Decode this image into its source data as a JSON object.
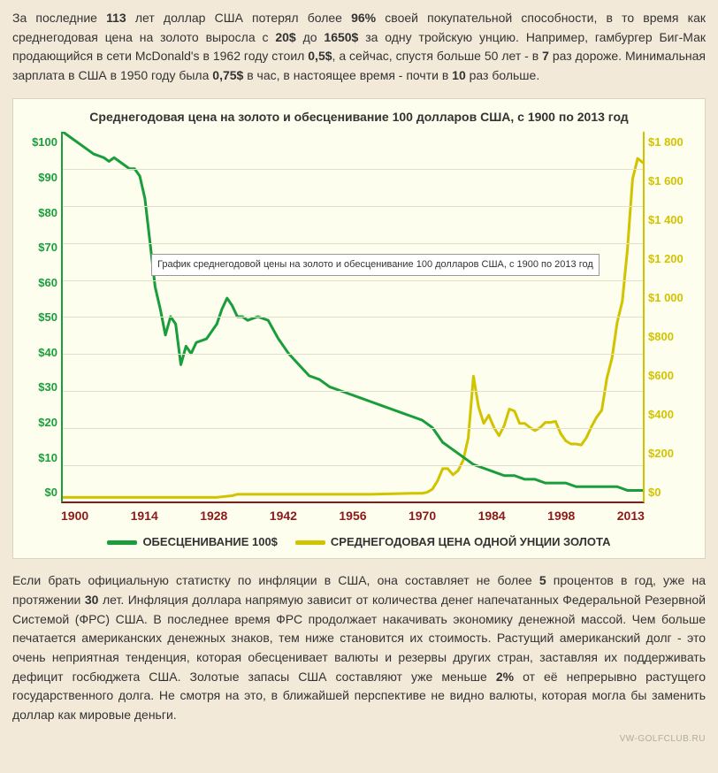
{
  "text": {
    "para1_parts": [
      "За последние ",
      "113",
      " лет доллар США потерял более ",
      "96%",
      " своей покупательной способности, в то время как среднегодовая цена на золото выросла с ",
      "20$",
      " до ",
      "1650$",
      " за одну тройскую унцию. Например, гамбургер Биг-Мак продающийся в сети McDonald's в 1962 году стоил ",
      "0,5$",
      ", а сейчас, спустя больше 50 лет - в ",
      "7",
      " раз дороже. Минимальная зарплата в США в 1950 году была ",
      "0,75$",
      " в час, в настоящее время - почти в ",
      "10",
      " раз больше."
    ],
    "para1_bold_idx": [
      1,
      3,
      5,
      7,
      9,
      11,
      13,
      15
    ],
    "para2_parts": [
      "Если брать официальную статистку по инфляции в США, она составляет не более ",
      "5",
      " процентов в год, уже на протяжении ",
      "30",
      " лет. Инфляция доллара напрямую зависит от количества денег напечатанных Федеральной Резервной Системой (ФРС) США. В последнее время ФРС продолжает накачивать экономику денежной массой. Чем больше печатается американских денежных знаков, тем ниже становится их стоимость. Растущий американский долг - это очень неприятная тенденция, которая обесценивает валюты и резервы других стран, заставляя их поддерживать дефицит госбюджета США. Золотые запасы США составляют уже меньше ",
      "2%",
      " от её непрерывно растущего государственного долга. Не смотря на это, в ближайшей перспективе не видно валюты, которая могла бы заменить доллар как мировые деньги."
    ],
    "para2_bold_idx": [
      1,
      3,
      5
    ]
  },
  "chart": {
    "title": "Среднегодовая цена на золото и обесценивание 100 долларов США, с 1900 по 2013 год",
    "tooltip": "График среднегодовой цены на золото и обесценивание 100 долларов США, с 1900 по 2013 год",
    "background_color": "#fdfeee",
    "grid_color": "#e2e0cd",
    "left_axis": {
      "color": "#1a9d3c",
      "min": 0,
      "max": 100,
      "ticks": [
        "$100",
        "$90",
        "$80",
        "$70",
        "$60",
        "$50",
        "$40",
        "$30",
        "$20",
        "$10",
        "$0"
      ]
    },
    "right_axis": {
      "color": "#d2c300",
      "min": 0,
      "max": 1800,
      "ticks": [
        "$1 800",
        "$1 600",
        "$1 400",
        "$1 200",
        "$1 000",
        "$800",
        "$600",
        "$400",
        "$200",
        "$0"
      ]
    },
    "x_axis": {
      "color": "#8b1a1a",
      "min": 1900,
      "max": 2013,
      "ticks": [
        "1900",
        "1914",
        "1928",
        "1942",
        "1956",
        "1970",
        "1984",
        "1998",
        "2013"
      ]
    },
    "series_dollar": {
      "label": "ОБЕСЦЕНИВАНИЕ 100$",
      "color": "#1a9d3c",
      "line_width": 3,
      "points": [
        [
          1900,
          100
        ],
        [
          1902,
          98
        ],
        [
          1904,
          96
        ],
        [
          1906,
          94
        ],
        [
          1908,
          93
        ],
        [
          1909,
          92
        ],
        [
          1910,
          93
        ],
        [
          1912,
          91
        ],
        [
          1913,
          90
        ],
        [
          1914,
          90
        ],
        [
          1915,
          88
        ],
        [
          1916,
          82
        ],
        [
          1917,
          70
        ],
        [
          1918,
          58
        ],
        [
          1919,
          52
        ],
        [
          1920,
          45
        ],
        [
          1921,
          50
        ],
        [
          1922,
          48
        ],
        [
          1923,
          37
        ],
        [
          1924,
          42
        ],
        [
          1925,
          40
        ],
        [
          1926,
          43
        ],
        [
          1928,
          44
        ],
        [
          1930,
          48
        ],
        [
          1931,
          52
        ],
        [
          1932,
          55
        ],
        [
          1933,
          53
        ],
        [
          1934,
          50
        ],
        [
          1935,
          50
        ],
        [
          1936,
          49
        ],
        [
          1938,
          50
        ],
        [
          1940,
          49
        ],
        [
          1942,
          44
        ],
        [
          1944,
          40
        ],
        [
          1946,
          37
        ],
        [
          1948,
          34
        ],
        [
          1950,
          33
        ],
        [
          1952,
          31
        ],
        [
          1954,
          30
        ],
        [
          1956,
          29
        ],
        [
          1958,
          28
        ],
        [
          1960,
          27
        ],
        [
          1962,
          26
        ],
        [
          1964,
          25
        ],
        [
          1966,
          24
        ],
        [
          1968,
          23
        ],
        [
          1970,
          22
        ],
        [
          1972,
          20
        ],
        [
          1974,
          16
        ],
        [
          1976,
          14
        ],
        [
          1978,
          12
        ],
        [
          1980,
          10
        ],
        [
          1982,
          9
        ],
        [
          1984,
          8
        ],
        [
          1986,
          7
        ],
        [
          1988,
          7
        ],
        [
          1990,
          6
        ],
        [
          1992,
          6
        ],
        [
          1994,
          5
        ],
        [
          1996,
          5
        ],
        [
          1998,
          5
        ],
        [
          2000,
          4
        ],
        [
          2002,
          4
        ],
        [
          2004,
          4
        ],
        [
          2006,
          4
        ],
        [
          2008,
          4
        ],
        [
          2010,
          3
        ],
        [
          2012,
          3
        ],
        [
          2013,
          3
        ]
      ]
    },
    "series_gold": {
      "label": "СРЕДНЕГОДОВАЯ ЦЕНА ОДНОЙ УНЦИИ ЗОЛОТА",
      "color": "#d2c300",
      "line_width": 3,
      "points": [
        [
          1900,
          20
        ],
        [
          1910,
          20
        ],
        [
          1920,
          20
        ],
        [
          1930,
          20
        ],
        [
          1933,
          28
        ],
        [
          1934,
          35
        ],
        [
          1940,
          35
        ],
        [
          1950,
          35
        ],
        [
          1960,
          35
        ],
        [
          1968,
          40
        ],
        [
          1970,
          40
        ],
        [
          1971,
          45
        ],
        [
          1972,
          60
        ],
        [
          1973,
          100
        ],
        [
          1974,
          160
        ],
        [
          1975,
          160
        ],
        [
          1976,
          130
        ],
        [
          1977,
          150
        ],
        [
          1978,
          200
        ],
        [
          1979,
          310
        ],
        [
          1980,
          610
        ],
        [
          1981,
          460
        ],
        [
          1982,
          380
        ],
        [
          1983,
          420
        ],
        [
          1984,
          360
        ],
        [
          1985,
          320
        ],
        [
          1986,
          370
        ],
        [
          1987,
          450
        ],
        [
          1988,
          440
        ],
        [
          1989,
          380
        ],
        [
          1990,
          380
        ],
        [
          1991,
          360
        ],
        [
          1992,
          345
        ],
        [
          1993,
          360
        ],
        [
          1994,
          385
        ],
        [
          1995,
          385
        ],
        [
          1996,
          390
        ],
        [
          1997,
          330
        ],
        [
          1998,
          295
        ],
        [
          1999,
          280
        ],
        [
          2000,
          280
        ],
        [
          2001,
          275
        ],
        [
          2002,
          310
        ],
        [
          2003,
          365
        ],
        [
          2004,
          410
        ],
        [
          2005,
          445
        ],
        [
          2006,
          600
        ],
        [
          2007,
          700
        ],
        [
          2008,
          870
        ],
        [
          2009,
          975
        ],
        [
          2010,
          1225
        ],
        [
          2011,
          1570
        ],
        [
          2012,
          1670
        ],
        [
          2013,
          1650
        ]
      ]
    },
    "legend": {
      "items": [
        {
          "key": "series_dollar"
        },
        {
          "key": "series_gold"
        }
      ]
    }
  },
  "watermark": "VW-GOLFCLUB.RU"
}
